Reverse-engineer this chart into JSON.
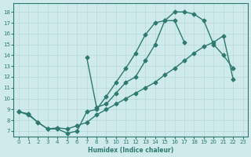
{
  "bg_color": "#ceeaea",
  "line_color": "#2d7b6e",
  "grid_color": "#b8d8d5",
  "xlabel": "Humidex (Indice chaleur)",
  "ylim": [
    6.5,
    18.8
  ],
  "xlim": [
    -0.5,
    23.5
  ],
  "yticks": [
    7,
    8,
    9,
    10,
    11,
    12,
    13,
    14,
    15,
    16,
    17,
    18
  ],
  "xticks": [
    0,
    1,
    2,
    3,
    4,
    5,
    6,
    7,
    8,
    9,
    10,
    11,
    12,
    13,
    14,
    15,
    16,
    17,
    18,
    19,
    20,
    21,
    22,
    23
  ],
  "line1_x": [
    0,
    1,
    2,
    3,
    4,
    5,
    6,
    7,
    8,
    9,
    10,
    11,
    12,
    13,
    14,
    15,
    16,
    17,
    18,
    19,
    20,
    21,
    22
  ],
  "line1_y": [
    8.8,
    8.6,
    7.8,
    7.2,
    7.2,
    6.8,
    7.0,
    8.8,
    9.0,
    10.2,
    11.5,
    12.8,
    14.2,
    15.9,
    17.0,
    17.2,
    18.0,
    18.0,
    17.8,
    17.2,
    15.0,
    14.0,
    12.8
  ],
  "line2_x": [
    7,
    8,
    9,
    10,
    11,
    12,
    13,
    14,
    15,
    16,
    17
  ],
  "line2_y": [
    13.8,
    9.2,
    9.5,
    10.5,
    11.5,
    12.0,
    13.5,
    15.0,
    17.2,
    17.2,
    15.2
  ],
  "line3_x": [
    0,
    1,
    2,
    3,
    4,
    5,
    6,
    7,
    8,
    9,
    10,
    11,
    12,
    13,
    14,
    15,
    16,
    17,
    18,
    19,
    20,
    21,
    22
  ],
  "line3_y": [
    8.8,
    8.5,
    7.8,
    7.2,
    7.3,
    7.2,
    7.5,
    7.8,
    8.5,
    9.0,
    9.5,
    10.0,
    10.5,
    11.0,
    11.5,
    12.2,
    12.8,
    13.5,
    14.2,
    14.8,
    15.2,
    15.8,
    11.8
  ],
  "marker": "D",
  "markersize": 2.5,
  "linewidth": 1.0
}
